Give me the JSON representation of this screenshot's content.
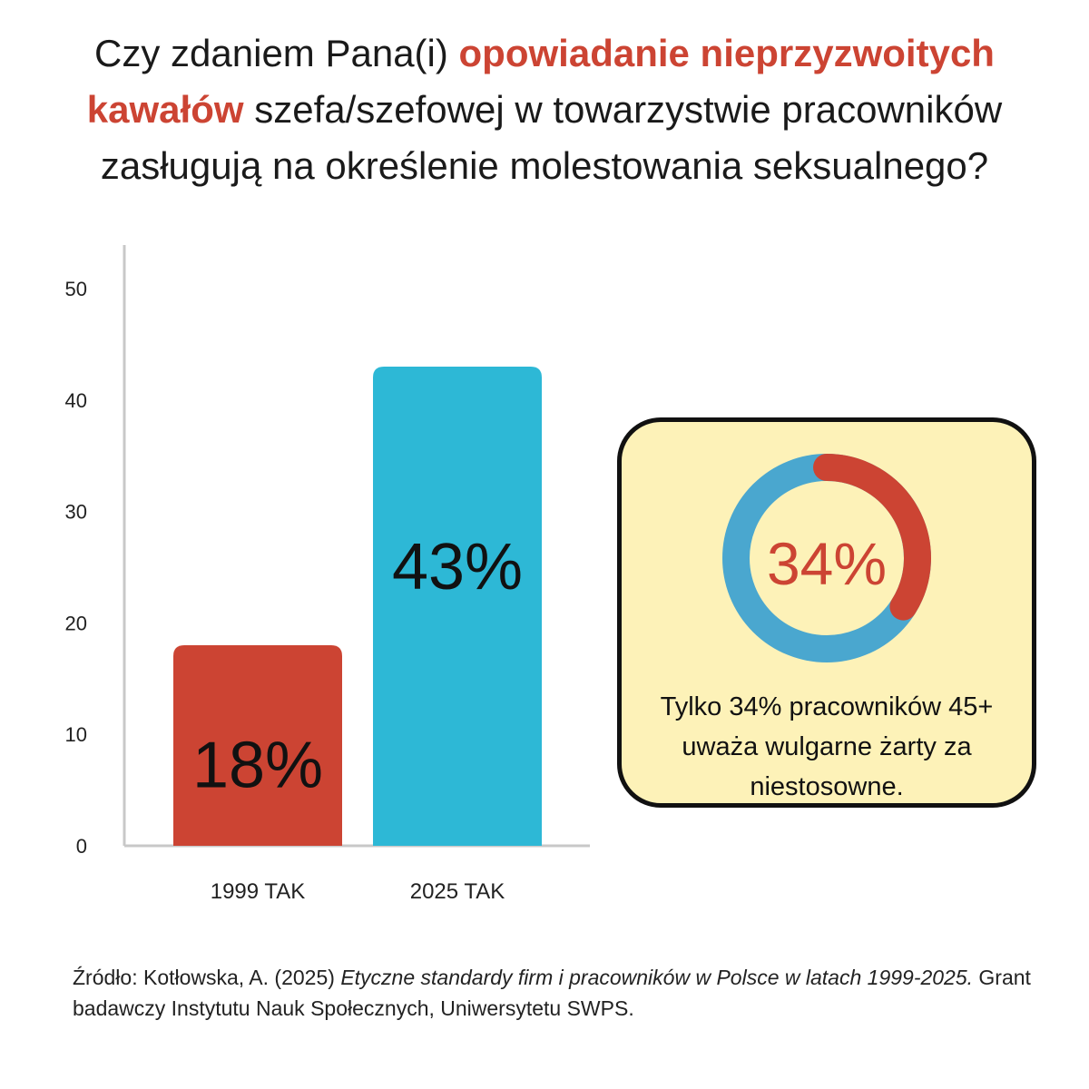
{
  "title": {
    "part1": "Czy zdaniem Pana(i) ",
    "highlight": "opowiadanie nieprzyzwoitych kawałów",
    "part2": " szefa/szefowej w towarzystwie pracowników zasługują na określenie molestowania seksualnego?"
  },
  "colors": {
    "accent_red": "#cc4433",
    "bar_blue": "#2db8d6",
    "ring_blue": "#4aa7cf",
    "callout_bg": "#fdf2b8"
  },
  "chart_data": {
    "type": "bar",
    "categories": [
      "1999 TAK",
      "2025 TAK"
    ],
    "values": [
      18,
      43
    ],
    "value_labels": [
      "18%",
      "43%"
    ],
    "bar_colors": [
      "#cc4433",
      "#2db8d6"
    ],
    "ylim": [
      0,
      50
    ],
    "yticks": [
      0,
      10,
      20,
      30,
      40,
      50
    ],
    "grid": false
  },
  "callout": {
    "percent": 34,
    "percent_label": "34%",
    "text": "Tylko 34% pracowników 45+ uważa wulgarne żarty za niestosowne."
  },
  "source": {
    "prefix": "Źródło: Kotłowska, A. (2025) ",
    "italic": "Etyczne standardy firm i  pracowników w Polsce w latach 1999-2025.",
    "suffix": " Grant badawczy Instytutu Nauk Społecznych, Uniwersytetu SWPS."
  }
}
